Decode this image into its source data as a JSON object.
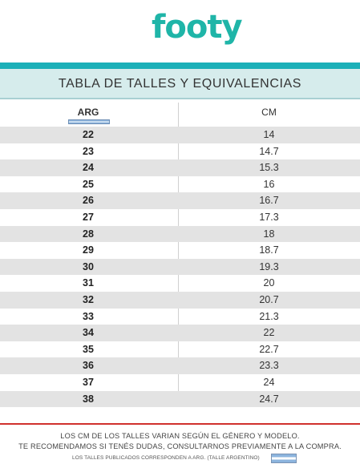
{
  "brand": {
    "logo_text": "footy",
    "accent": "#1fb5a8"
  },
  "title": "TABLA DE TALLES Y EQUIVALENCIAS",
  "table": {
    "headers": {
      "arg": "ARG",
      "cm": "CM"
    },
    "rows": [
      {
        "arg": "22",
        "cm": "14"
      },
      {
        "arg": "23",
        "cm": "14.7"
      },
      {
        "arg": "24",
        "cm": "15.3"
      },
      {
        "arg": "25",
        "cm": "16"
      },
      {
        "arg": "26",
        "cm": "16.7"
      },
      {
        "arg": "27",
        "cm": "17.3"
      },
      {
        "arg": "28",
        "cm": "18"
      },
      {
        "arg": "29",
        "cm": "18.7"
      },
      {
        "arg": "30",
        "cm": "19.3"
      },
      {
        "arg": "31",
        "cm": "20"
      },
      {
        "arg": "32",
        "cm": "20.7"
      },
      {
        "arg": "33",
        "cm": "21.3"
      },
      {
        "arg": "34",
        "cm": "22"
      },
      {
        "arg": "35",
        "cm": "22.7"
      },
      {
        "arg": "36",
        "cm": "23.3"
      },
      {
        "arg": "37",
        "cm": "24"
      },
      {
        "arg": "38",
        "cm": "24.7"
      }
    ]
  },
  "footer": {
    "line1": "LOS CM DE LOS TALLES VARIAN SEGÚN EL GÉNERO Y MODELO.",
    "line2": "TE RECOMENDAMOS SI TENÉS DUDAS, CONSULTARNOS PREVIAMENTE A LA COMPRA.",
    "line3": "LOS TALLES PUBLICADOS CORRESPONDEN A ARG. (TALLE ARGENTINO)"
  }
}
